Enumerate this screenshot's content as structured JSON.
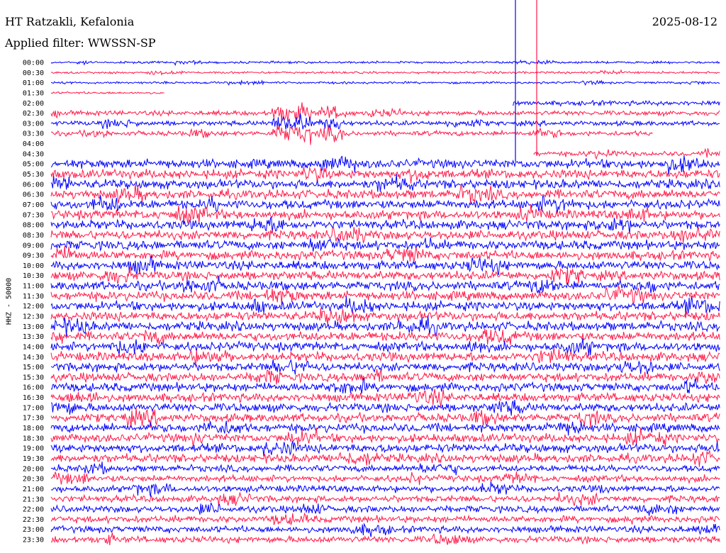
{
  "header": {
    "station": "HT Ratzakli, Kefalonia",
    "filter": "Applied filter: WWSSN-SP",
    "date": "2025-08-12"
  },
  "chart_data": {
    "type": "line",
    "title": "HT Ratzakli, Kefalonia",
    "subtitle": "Applied filter: WWSSN-SP",
    "ylabel": "HHZ - 50000",
    "row_labels": [
      "00:00",
      "00:30",
      "01:00",
      "01:30",
      "02:00",
      "02:30",
      "03:00",
      "03:30",
      "04:00",
      "04:30",
      "05:00",
      "05:30",
      "06:00",
      "06:30",
      "07:00",
      "07:30",
      "08:00",
      "08:30",
      "09:00",
      "09:30",
      "10:00",
      "10:30",
      "11:00",
      "11:30",
      "12:00",
      "12:30",
      "13:00",
      "13:30",
      "14:00",
      "14:30",
      "15:00",
      "15:30",
      "16:00",
      "16:30",
      "17:00",
      "17:30",
      "18:00",
      "18:30",
      "19:00",
      "19:30",
      "20:00",
      "20:30",
      "21:00",
      "21:30",
      "22:00",
      "22:30",
      "23:00",
      "23:30"
    ],
    "series_colors": [
      "#0000ff",
      "#ff1a4a"
    ],
    "gaps": [
      {
        "row": "01:30",
        "from": 0.17,
        "to": 1.0
      },
      {
        "row": "02:00",
        "from": 0.0,
        "to": 0.69
      },
      {
        "row": "03:30",
        "from": 0.9,
        "to": 1.0
      },
      {
        "row": "04:00",
        "from": 0.0,
        "to": 1.0
      },
      {
        "row": "04:30",
        "from": 0.0,
        "to": 0.72
      }
    ],
    "grid": false
  }
}
